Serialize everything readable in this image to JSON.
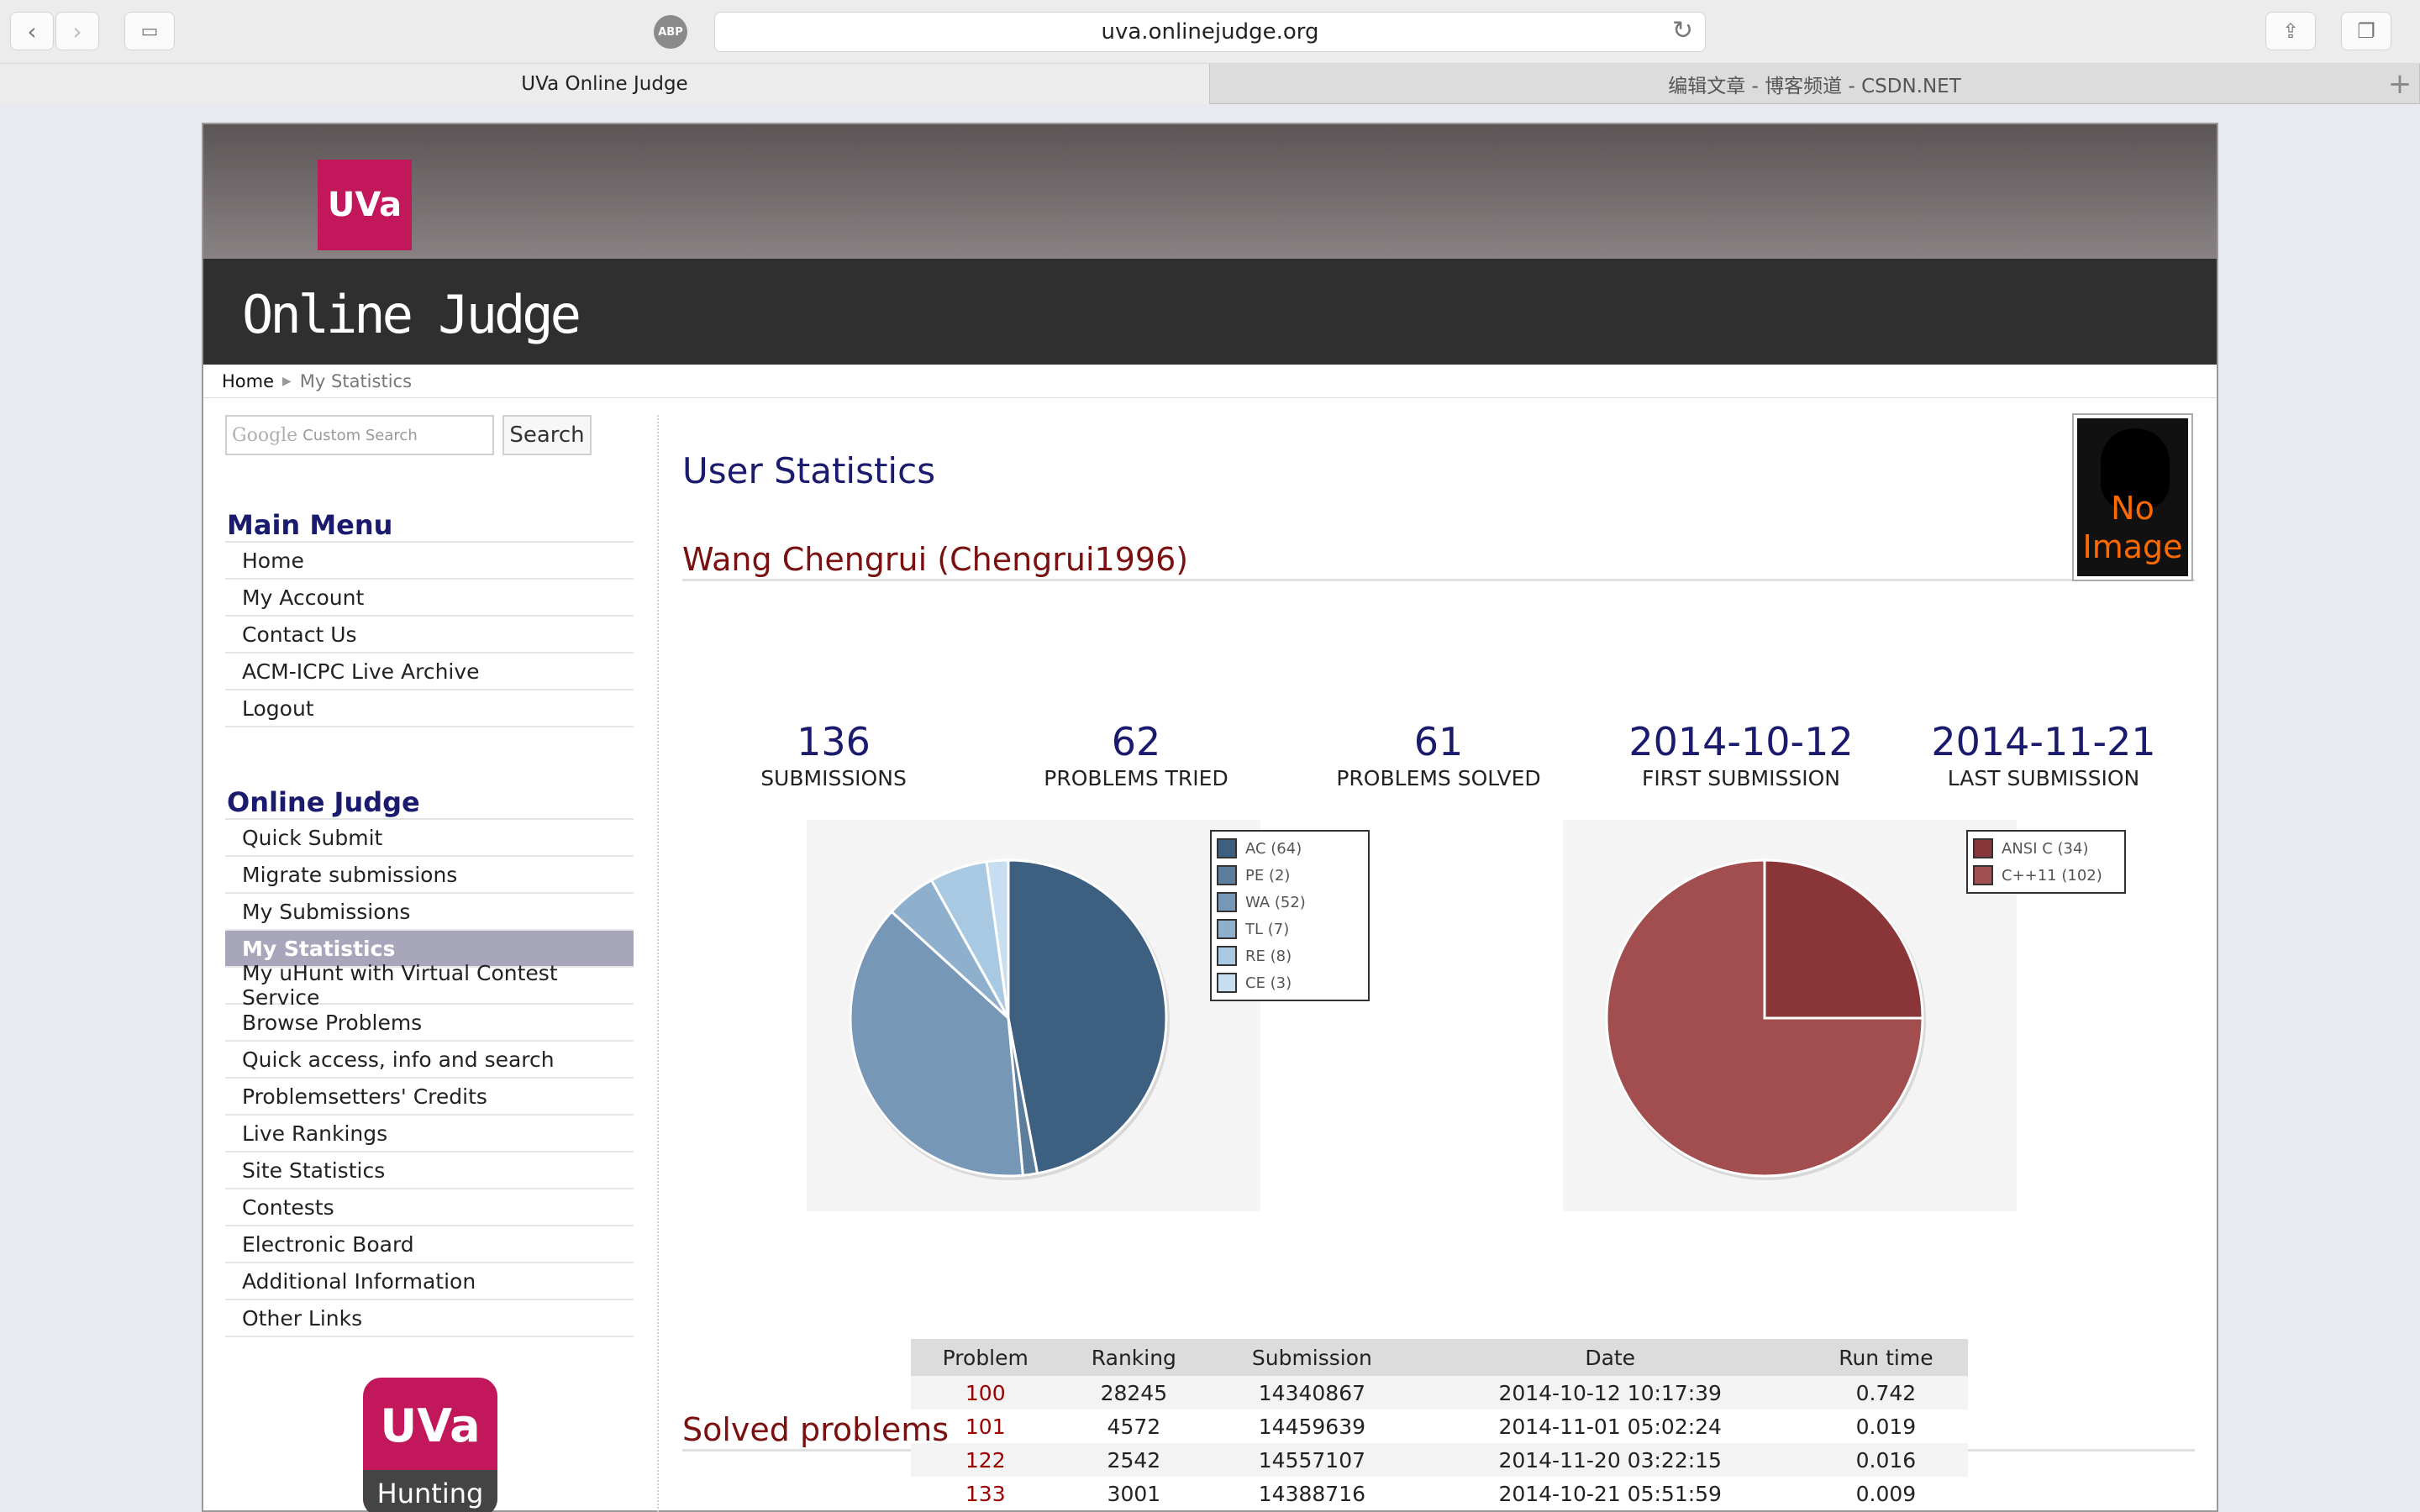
{
  "browser": {
    "url": "uva.onlinejudge.org",
    "abp_label": "ABP",
    "tabs": [
      {
        "label": "UVa Online Judge"
      },
      {
        "label": "编辑文章 - 博客频道 - CSDN.NET"
      }
    ]
  },
  "header": {
    "logo_text": "UVa",
    "title": "Online Judge"
  },
  "breadcrumb": {
    "home": "Home",
    "current": "My Statistics"
  },
  "search": {
    "google_label": "Google",
    "placeholder": "Custom Search",
    "button": "Search"
  },
  "main_menu": {
    "title": "Main Menu",
    "items": [
      "Home",
      "My Account",
      "Contact Us",
      "ACM-ICPC Live Archive",
      "Logout"
    ]
  },
  "oj_menu": {
    "title": "Online Judge",
    "items": [
      "Quick Submit",
      "Migrate submissions",
      "My Submissions",
      "My Statistics",
      "My uHunt with Virtual Contest Service",
      "Browse Problems",
      "Quick access, info and search",
      "Problemsetters' Credits",
      "Live Rankings",
      "Site Statistics",
      "Contests",
      "Electronic Board",
      "Additional Information",
      "Other Links"
    ],
    "active": "My Statistics"
  },
  "uhunt": {
    "top": "UVa",
    "bottom": "Hunting"
  },
  "content": {
    "title": "User Statistics",
    "user": "Wang Chengrui (Chengrui1996)",
    "no_image": [
      "No",
      "Image"
    ],
    "stats": [
      {
        "value": "136",
        "label": "SUBMISSIONS"
      },
      {
        "value": "62",
        "label": "PROBLEMS TRIED"
      },
      {
        "value": "61",
        "label": "PROBLEMS SOLVED"
      },
      {
        "value": "2014-10-12",
        "label": "FIRST SUBMISSION"
      },
      {
        "value": "2014-11-21",
        "label": "LAST SUBMISSION"
      }
    ],
    "solved_title": "Solved problems"
  },
  "chart_data": [
    {
      "type": "pie",
      "legend_position": "top-right",
      "categories": [
        "AC (64)",
        "PE (2)",
        "WA (52)",
        "TL (7)",
        "RE (8)",
        "CE (3)"
      ],
      "values": [
        64,
        2,
        52,
        7,
        8,
        3
      ],
      "colors": [
        "#3d5f80",
        "#5c7d9c",
        "#7697b6",
        "#8fb0cc",
        "#a9c9e2",
        "#c7def0"
      ]
    },
    {
      "type": "pie",
      "legend_position": "top-right",
      "categories": [
        "ANSI C (34)",
        "C++11 (102)"
      ],
      "values": [
        34,
        102
      ],
      "colors": [
        "#8a3537",
        "#a24e4e"
      ]
    }
  ],
  "table": {
    "headers": [
      "Problem",
      "Ranking",
      "Submission",
      "Date",
      "Run time"
    ],
    "rows": [
      [
        "100",
        "28245",
        "14340867",
        "2014-10-12 10:17:39",
        "0.742"
      ],
      [
        "101",
        "4572",
        "14459639",
        "2014-11-01 05:02:24",
        "0.019"
      ],
      [
        "122",
        "2542",
        "14557107",
        "2014-11-20 03:22:15",
        "0.016"
      ],
      [
        "133",
        "3001",
        "14388716",
        "2014-10-21 05:51:59",
        "0.009"
      ]
    ]
  }
}
